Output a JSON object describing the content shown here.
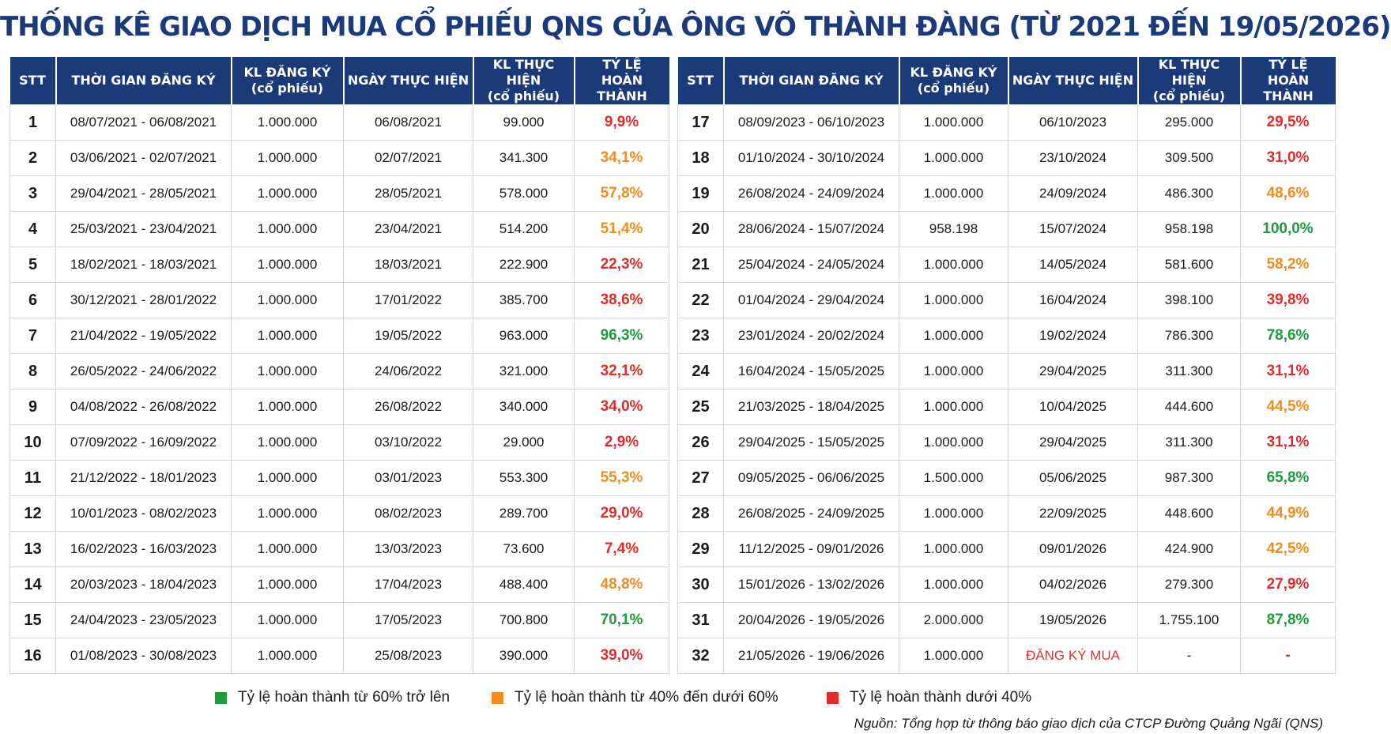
{
  "title": "THỐNG KÊ GIAO DỊCH MUA CỔ PHIẾU QNS CỦA ÔNG VÕ THÀNH ĐÀNG (TỪ 2021 ĐẾN 19/05/2026)",
  "colors": {
    "header_bg": "#1a3a7a",
    "green": "#1e9b3c",
    "orange": "#f28c1e",
    "red": "#e32b2b"
  },
  "headers": {
    "stt": "STT",
    "period": "THỜI GIAN ĐĂNG KÝ",
    "registered_1": "KL ĐĂNG KÝ",
    "registered_2": "(cổ phiếu)",
    "date": "NGÀY THỰC HIỆN",
    "executed_1": "KL THỰC HIỆN",
    "executed_2": "(cổ phiếu)",
    "rate_1": "TỶ LỆ",
    "rate_2": "HOÀN THÀNH"
  },
  "rows_left": [
    {
      "stt": "1",
      "period": "08/07/2021 - 06/08/2021",
      "registered": "1.000.000",
      "date": "06/08/2021",
      "executed": "99.000",
      "rate": "9,9%",
      "level": "red"
    },
    {
      "stt": "2",
      "period": "03/06/2021 - 02/07/2021",
      "registered": "1.000.000",
      "date": "02/07/2021",
      "executed": "341.300",
      "rate": "34,1%",
      "level": "orange"
    },
    {
      "stt": "3",
      "period": "29/04/2021 - 28/05/2021",
      "registered": "1.000.000",
      "date": "28/05/2021",
      "executed": "578.000",
      "rate": "57,8%",
      "level": "orange"
    },
    {
      "stt": "4",
      "period": "25/03/2021 - 23/04/2021",
      "registered": "1.000.000",
      "date": "23/04/2021",
      "executed": "514.200",
      "rate": "51,4%",
      "level": "orange"
    },
    {
      "stt": "5",
      "period": "18/02/2021 - 18/03/2021",
      "registered": "1.000.000",
      "date": "18/03/2021",
      "executed": "222.900",
      "rate": "22,3%",
      "level": "red"
    },
    {
      "stt": "6",
      "period": "30/12/2021 - 28/01/2022",
      "registered": "1.000.000",
      "date": "17/01/2022",
      "executed": "385.700",
      "rate": "38,6%",
      "level": "red"
    },
    {
      "stt": "7",
      "period": "21/04/2022 - 19/05/2022",
      "registered": "1.000.000",
      "date": "19/05/2022",
      "executed": "963.000",
      "rate": "96,3%",
      "level": "green"
    },
    {
      "stt": "8",
      "period": "26/05/2022 - 24/06/2022",
      "registered": "1.000.000",
      "date": "24/06/2022",
      "executed": "321.000",
      "rate": "32,1%",
      "level": "red"
    },
    {
      "stt": "9",
      "period": "04/08/2022 - 26/08/2022",
      "registered": "1.000.000",
      "date": "26/08/2022",
      "executed": "340.000",
      "rate": "34,0%",
      "level": "red"
    },
    {
      "stt": "10",
      "period": "07/09/2022 - 16/09/2022",
      "registered": "1.000.000",
      "date": "03/10/2022",
      "executed": "29.000",
      "rate": "2,9%",
      "level": "red"
    },
    {
      "stt": "11",
      "period": "21/12/2022 - 18/01/2023",
      "registered": "1.000.000",
      "date": "03/01/2023",
      "executed": "553.300",
      "rate": "55,3%",
      "level": "orange"
    },
    {
      "stt": "12",
      "period": "10/01/2023 - 08/02/2023",
      "registered": "1.000.000",
      "date": "08/02/2023",
      "executed": "289.700",
      "rate": "29,0%",
      "level": "red"
    },
    {
      "stt": "13",
      "period": "16/02/2023 - 16/03/2023",
      "registered": "1.000.000",
      "date": "13/03/2023",
      "executed": "73.600",
      "rate": "7,4%",
      "level": "red"
    },
    {
      "stt": "14",
      "period": "20/03/2023 - 18/04/2023",
      "registered": "1.000.000",
      "date": "17/04/2023",
      "executed": "488.400",
      "rate": "48,8%",
      "level": "orange"
    },
    {
      "stt": "15",
      "period": "24/04/2023 - 23/05/2023",
      "registered": "1.000.000",
      "date": "17/05/2023",
      "executed": "700.800",
      "rate": "70,1%",
      "level": "green"
    },
    {
      "stt": "16",
      "period": "01/08/2023 - 30/08/2023",
      "registered": "1.000.000",
      "date": "25/08/2023",
      "executed": "390.000",
      "rate": "39,0%",
      "level": "red"
    }
  ],
  "rows_right": [
    {
      "stt": "17",
      "period": "08/09/2023 - 06/10/2023",
      "registered": "1.000.000",
      "date": "06/10/2023",
      "executed": "295.000",
      "rate": "29,5%",
      "level": "red"
    },
    {
      "stt": "18",
      "period": "01/10/2024 - 30/10/2024",
      "registered": "1.000.000",
      "date": "23/10/2024",
      "executed": "309.500",
      "rate": "31,0%",
      "level": "red"
    },
    {
      "stt": "19",
      "period": "26/08/2024 - 24/09/2024",
      "registered": "1.000.000",
      "date": "24/09/2024",
      "executed": "486.300",
      "rate": "48,6%",
      "level": "orange"
    },
    {
      "stt": "20",
      "period": "28/06/2024 - 15/07/2024",
      "registered": "958.198",
      "date": "15/07/2024",
      "executed": "958.198",
      "rate": "100,0%",
      "level": "green"
    },
    {
      "stt": "21",
      "period": "25/04/2024 - 24/05/2024",
      "registered": "1.000.000",
      "date": "14/05/2024",
      "executed": "581.600",
      "rate": "58,2%",
      "level": "orange"
    },
    {
      "stt": "22",
      "period": "01/04/2024 - 29/04/2024",
      "registered": "1.000.000",
      "date": "16/04/2024",
      "executed": "398.100",
      "rate": "39,8%",
      "level": "red"
    },
    {
      "stt": "23",
      "period": "23/01/2024 - 20/02/2024",
      "registered": "1.000.000",
      "date": "19/02/2024",
      "executed": "786.300",
      "rate": "78,6%",
      "level": "green"
    },
    {
      "stt": "24",
      "period": "16/04/2024 - 15/05/2025",
      "registered": "1.000.000",
      "date": "29/04/2025",
      "executed": "311.300",
      "rate": "31,1%",
      "level": "red"
    },
    {
      "stt": "25",
      "period": "21/03/2025 - 18/04/2025",
      "registered": "1.000.000",
      "date": "10/04/2025",
      "executed": "444.600",
      "rate": "44,5%",
      "level": "orange"
    },
    {
      "stt": "26",
      "period": "29/04/2025 - 15/05/2025",
      "registered": "1.000.000",
      "date": "29/04/2025",
      "executed": "311.300",
      "rate": "31,1%",
      "level": "red"
    },
    {
      "stt": "27",
      "period": "09/05/2025 - 06/06/2025",
      "registered": "1.500.000",
      "date": "05/06/2025",
      "executed": "987.300",
      "rate": "65,8%",
      "level": "green"
    },
    {
      "stt": "28",
      "period": "26/08/2025 - 24/09/2025",
      "registered": "1.000.000",
      "date": "22/09/2025",
      "executed": "448.600",
      "rate": "44,9%",
      "level": "orange"
    },
    {
      "stt": "29",
      "period": "11/12/2025 - 09/01/2026",
      "registered": "1.000.000",
      "date": "09/01/2026",
      "executed": "424.900",
      "rate": "42,5%",
      "level": "orange"
    },
    {
      "stt": "30",
      "period": "15/01/2026 - 13/02/2026",
      "registered": "1.000.000",
      "date": "04/02/2026",
      "executed": "279.300",
      "rate": "27,9%",
      "level": "red"
    },
    {
      "stt": "31",
      "period": "20/04/2026 - 19/05/2026",
      "registered": "2.000.000",
      "date": "19/05/2026",
      "executed": "1.755.100",
      "rate": "87,8%",
      "level": "green"
    },
    {
      "stt": "32",
      "period": "21/05/2026 - 19/06/2026",
      "registered": "1.000.000",
      "date": "ĐĂNG KÝ MUA",
      "executed": "-",
      "rate": "-",
      "level": "red",
      "date_highlight": true
    }
  ],
  "legend": [
    {
      "label": "Tỷ lệ hoàn thành từ 60% trở lên",
      "color": "#1e9b3c"
    },
    {
      "label": "Tỷ lệ hoàn thành từ 40% đến dưới 60%",
      "color": "#f28c1e"
    },
    {
      "label": "Tỷ lệ hoàn thành dưới 40%",
      "color": "#e32b2b"
    }
  ],
  "source": "Nguồn: Tổng hợp từ thông báo giao dịch của CTCP Đường Quảng Ngãi (QNS)"
}
